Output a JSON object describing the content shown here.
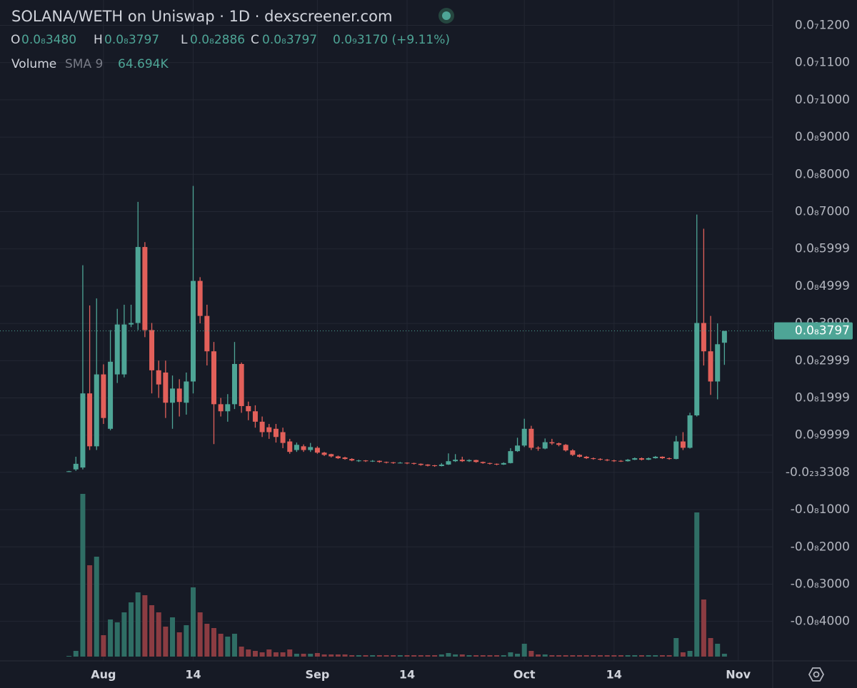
{
  "chart_data": {
    "type": "candlestick",
    "title": "SOLANA/WETH on Uniswap · 1D · dexscreener.com",
    "ohlc_header": {
      "open_label": "O",
      "open": "0.0₈3480",
      "high_label": "H",
      "high": "0.0₈3797",
      "low_label": "L",
      "low": "0.0₈2886",
      "close_label": "C",
      "close": "0.0₈3797",
      "change": "0.0₉3170 (+9.11%)"
    },
    "volume_header": {
      "label": "Volume",
      "sma": "SMA 9",
      "value": "64.694K"
    },
    "x": [
      "07-27",
      "07-28",
      "07-29",
      "07-30",
      "07-31",
      "08-01",
      "08-02",
      "08-03",
      "08-04",
      "08-05",
      "08-06",
      "08-07",
      "08-08",
      "08-09",
      "08-10",
      "08-11",
      "08-12",
      "08-13",
      "08-14",
      "08-15",
      "08-16",
      "08-17",
      "08-18",
      "08-19",
      "08-20",
      "08-21",
      "08-22",
      "08-23",
      "08-24",
      "08-25",
      "08-26",
      "08-27",
      "08-28",
      "08-29",
      "08-30",
      "08-31",
      "09-01",
      "09-02",
      "09-03",
      "09-04",
      "09-05",
      "09-06",
      "09-07",
      "09-08",
      "09-09",
      "09-10",
      "09-11",
      "09-12",
      "09-13",
      "09-14",
      "09-15",
      "09-16",
      "09-17",
      "09-18",
      "09-19",
      "09-20",
      "09-21",
      "09-22",
      "09-23",
      "09-24",
      "09-25",
      "09-26",
      "09-27",
      "09-28",
      "09-29",
      "09-30",
      "10-01",
      "10-02",
      "10-03",
      "10-04",
      "10-05",
      "10-06",
      "10-07",
      "10-08",
      "10-09",
      "10-10",
      "10-11",
      "10-12",
      "10-13",
      "10-14",
      "10-15",
      "10-16",
      "10-17",
      "10-18",
      "10-19",
      "10-20",
      "10-21",
      "10-22",
      "10-23",
      "10-24",
      "10-25",
      "10-26",
      "10-27",
      "10-28",
      "10-29",
      "10-30"
    ],
    "open": [
      2e-11,
      8e-11,
      1.3e-10,
      2.12e-09,
      7e-10,
      2.63e-09,
      1.17e-09,
      2.63e-09,
      2.63e-09,
      3.97e-09,
      4.01e-09,
      6.05e-09,
      3.82e-09,
      2.74e-09,
      2.68e-09,
      1.87e-09,
      2.25e-09,
      1.87e-09,
      2.44e-09,
      5.14e-09,
      4.2e-09,
      3.25e-09,
      1.83e-09,
      1.64e-09,
      1.83e-09,
      2.91e-09,
      1.78e-09,
      1.64e-09,
      1.36e-09,
      1.21e-09,
      1.17e-09,
      1.08e-09,
      8.3e-10,
      6e-10,
      7e-10,
      6e-10,
      6.6e-10,
      5.3e-10,
      4.9e-10,
      4.3e-10,
      4e-10,
      3.6e-10,
      3e-10,
      3.2e-10,
      3e-10,
      3.1e-10,
      2.8e-10,
      2.7e-10,
      2.5e-10,
      2.6e-10,
      2.5e-10,
      2.3e-10,
      2.1e-10,
      1.9e-10,
      1.7e-10,
      2.1e-10,
      3e-10,
      3.4e-10,
      3e-10,
      3.3e-10,
      2.8e-10,
      2.5e-10,
      2.3e-10,
      2.1e-10,
      2.5e-10,
      5.7e-10,
      7.2e-10,
      1.17e-09,
      6.6e-10,
      6.4e-10,
      8.1e-10,
      7.8e-10,
      7.4e-10,
      5.9e-10,
      4.7e-10,
      4.2e-10,
      3.8e-10,
      3.6e-10,
      3.4e-10,
      3.2e-10,
      3.1e-10,
      3e-10,
      3.4e-10,
      3.8e-10,
      3.4e-10,
      3.8e-10,
      4.2e-10,
      3.8e-10,
      3.6e-10,
      8.3e-10,
      6.6e-10,
      1.53e-09,
      4.01e-09,
      3.25e-09,
      2.44e-09,
      3.48e-09
    ],
    "high": [
      4e-11,
      4.2e-10,
      5.56e-09,
      4.48e-09,
      4.67e-09,
      2.9e-09,
      3.82e-09,
      4.39e-09,
      4.5e-09,
      4.5e-09,
      7.26e-09,
      6.18e-09,
      4.01e-09,
      3e-09,
      3e-09,
      2.6e-09,
      2.5e-09,
      2.68e-09,
      7.69e-09,
      5.24e-09,
      4.5e-09,
      3.5e-09,
      2e-09,
      2.1e-09,
      3.5e-09,
      2.95e-09,
      1.9e-09,
      1.8e-09,
      1.5e-09,
      1.3e-09,
      1.3e-09,
      1.2e-09,
      9e-10,
      8e-10,
      7.5e-10,
      7.9e-10,
      7e-10,
      5.5e-10,
      5e-10,
      4.5e-10,
      4.2e-10,
      3.8e-10,
      3.4e-10,
      3.3e-10,
      3.3e-10,
      3.2e-10,
      2.9e-10,
      2.8e-10,
      2.8e-10,
      2.7e-10,
      2.6e-10,
      2.4e-10,
      2.2e-10,
      2e-10,
      2.5e-10,
      5.1e-10,
      4.9e-10,
      4.2e-10,
      3.5e-10,
      3.4e-10,
      2.9e-10,
      2.6e-10,
      2.4e-10,
      2.7e-10,
      6.5e-10,
      9.3e-10,
      1.44e-09,
      1.25e-09,
      7e-10,
      9.1e-10,
      9e-10,
      8e-10,
      7.6e-10,
      6.2e-10,
      4.9e-10,
      4.4e-10,
      4e-10,
      3.8e-10,
      3.6e-10,
      3.4e-10,
      3.3e-10,
      3.6e-10,
      4e-10,
      4e-10,
      4e-10,
      4.4e-10,
      4.3e-10,
      4e-10,
      9.8e-10,
      1.08e-09,
      1.6e-09,
      6.92e-09,
      6.54e-09,
      4.2e-09,
      4e-09,
      3.797e-09
    ],
    "low": [
      1e-11,
      4e-11,
      8e-11,
      6e-10,
      6e-10,
      1.3e-09,
      1.13e-09,
      2.4e-09,
      2.55e-09,
      3.9e-09,
      3.82e-09,
      3.63e-09,
      2.12e-09,
      2e-09,
      1.46e-09,
      1.17e-09,
      1.5e-09,
      1.55e-09,
      2.12e-09,
      4e-09,
      2.87e-09,
      7.6e-10,
      1.5e-09,
      1.36e-09,
      1.7e-09,
      1.6e-09,
      1.4e-09,
      1.2e-09,
      9.5e-10,
      9e-10,
      8e-10,
      6.5e-10,
      5e-10,
      5.5e-10,
      5.5e-10,
      5.5e-10,
      5e-10,
      4.4e-10,
      4e-10,
      3.6e-10,
      3.4e-10,
      3e-10,
      2.8e-10,
      2.8e-10,
      2.8e-10,
      2.6e-10,
      2.4e-10,
      2.3e-10,
      2.4e-10,
      2.2e-10,
      2.1e-10,
      1.8e-10,
      1.6e-10,
      1.5e-10,
      1.6e-10,
      2e-10,
      2.8e-10,
      2.8e-10,
      2.8e-10,
      2.6e-10,
      2.3e-10,
      2.1e-10,
      1.9e-10,
      2e-10,
      2.4e-10,
      5.5e-10,
      6.8e-10,
      6e-10,
      5.8e-10,
      6.2e-10,
      7.4e-10,
      7e-10,
      5.6e-10,
      4.4e-10,
      4e-10,
      3.6e-10,
      3.4e-10,
      3.2e-10,
      3e-10,
      2.8e-10,
      2.8e-10,
      2.9e-10,
      3.3e-10,
      3.2e-10,
      3.3e-10,
      3.7e-10,
      3.6e-10,
      3.4e-10,
      3.5e-10,
      6e-10,
      6.4e-10,
      1.5e-09,
      2.87e-09,
      2.08e-09,
      1.96e-09,
      2.886e-09
    ],
    "close": [
      3e-11,
      2.3e-10,
      2.12e-09,
      7e-10,
      2.63e-09,
      1.46e-09,
      2.97e-09,
      3.97e-09,
      3.97e-09,
      4.01e-09,
      6.05e-09,
      3.82e-09,
      2.74e-09,
      2.36e-09,
      1.87e-09,
      2.25e-09,
      1.89e-09,
      2.44e-09,
      5.14e-09,
      4.2e-09,
      3.25e-09,
      1.83e-09,
      1.64e-09,
      1.83e-09,
      2.91e-09,
      1.78e-09,
      1.64e-09,
      1.36e-09,
      1.08e-09,
      1.08e-09,
      9.5e-10,
      7.9e-10,
      5.5e-10,
      7.4e-10,
      6e-10,
      6.8e-10,
      5.3e-10,
      4.7e-10,
      4.3e-10,
      3.8e-10,
      3.6e-10,
      3.2e-10,
      3.2e-10,
      3e-10,
      3.1e-10,
      2.8e-10,
      2.6e-10,
      2.5e-10,
      2.6e-10,
      2.4e-10,
      2.3e-10,
      2e-10,
      1.8e-10,
      1.7e-10,
      2.1e-10,
      3e-10,
      3.4e-10,
      3e-10,
      3.3e-10,
      2.8e-10,
      2.5e-10,
      2.3e-10,
      2.1e-10,
      2.5e-10,
      5.7e-10,
      7.2e-10,
      1.17e-09,
      6.6e-10,
      6.4e-10,
      8.1e-10,
      7.8e-10,
      7.4e-10,
      5.9e-10,
      4.7e-10,
      4.2e-10,
      3.8e-10,
      3.6e-10,
      3.4e-10,
      3.2e-10,
      3e-10,
      3e-10,
      3.4e-10,
      3.8e-10,
      3.4e-10,
      3.8e-10,
      4.2e-10,
      3.8e-10,
      3.6e-10,
      8.3e-10,
      6.6e-10,
      1.53e-09,
      4.01e-09,
      3.25e-09,
      2.44e-09,
      3.44e-09,
      3.797e-09
    ],
    "volume": [
      2,
      16,
      456,
      256,
      280,
      60,
      104,
      96,
      124,
      152,
      180,
      172,
      144,
      124,
      84,
      110,
      68,
      88,
      194,
      124,
      92,
      80,
      64,
      56,
      64,
      28,
      20,
      16,
      12,
      20,
      12,
      12,
      20,
      8,
      8,
      8,
      10,
      6,
      6,
      6,
      6,
      4,
      4,
      4,
      4,
      4,
      4,
      4,
      4,
      4,
      4,
      4,
      4,
      4,
      6,
      10,
      6,
      6,
      4,
      4,
      4,
      4,
      4,
      4,
      12,
      8,
      36,
      16,
      6,
      6,
      4,
      4,
      4,
      4,
      4,
      4,
      4,
      4,
      4,
      4,
      4,
      4,
      4,
      4,
      4,
      4,
      4,
      4,
      52,
      12,
      16,
      404,
      160,
      52,
      36,
      8
    ],
    "volume_ylim": [
      0,
      460
    ],
    "up_color": "#4ea596",
    "down_color": "#e2605a",
    "volume_up_color": "#2f6e65",
    "volume_down_color": "#8b3c42",
    "xlim": [
      "07-17",
      "11-06"
    ],
    "xticks": [
      {
        "value": "08-01",
        "label": "Aug"
      },
      {
        "value": "08-14",
        "label": "14"
      },
      {
        "value": "09-01",
        "label": "Sep"
      },
      {
        "value": "09-14",
        "label": "14"
      },
      {
        "value": "10-01",
        "label": "Oct"
      },
      {
        "value": "10-14",
        "label": "14"
      },
      {
        "value": "11-01",
        "label": "Nov"
      }
    ],
    "ylim": [
      -5.06e-09,
      1.268e-08
    ],
    "yticks": [
      {
        "value": 1.2e-08,
        "label": "0.0₇1200"
      },
      {
        "value": 1.1e-08,
        "label": "0.0₇1100"
      },
      {
        "value": 1e-08,
        "label": "0.0₇1000"
      },
      {
        "value": 9e-09,
        "label": "0.0₈9000"
      },
      {
        "value": 8e-09,
        "label": "0.0₈8000"
      },
      {
        "value": 7e-09,
        "label": "0.0₈7000"
      },
      {
        "value": 5.999e-09,
        "label": "0.0₈5999"
      },
      {
        "value": 4.999e-09,
        "label": "0.0₈4999"
      },
      {
        "value": 3.999e-09,
        "label": "0.0₈3999"
      },
      {
        "value": 2.999e-09,
        "label": "0.0₈2999"
      },
      {
        "value": 1.999e-09,
        "label": "0.0₈1999"
      },
      {
        "value": 9.999e-10,
        "label": "0.0₉9999"
      },
      {
        "value": -3.308e-23,
        "label": "-0.0₂₃3308"
      },
      {
        "value": -1e-09,
        "label": "-0.0₈1000"
      },
      {
        "value": -2e-09,
        "label": "-0.0₈2000"
      },
      {
        "value": -3e-09,
        "label": "-0.0₈3000"
      },
      {
        "value": -4e-09,
        "label": "-0.0₈4000"
      }
    ],
    "last_price": {
      "value": 3.797e-09,
      "label": "0.0₈3797"
    },
    "grid": true
  }
}
